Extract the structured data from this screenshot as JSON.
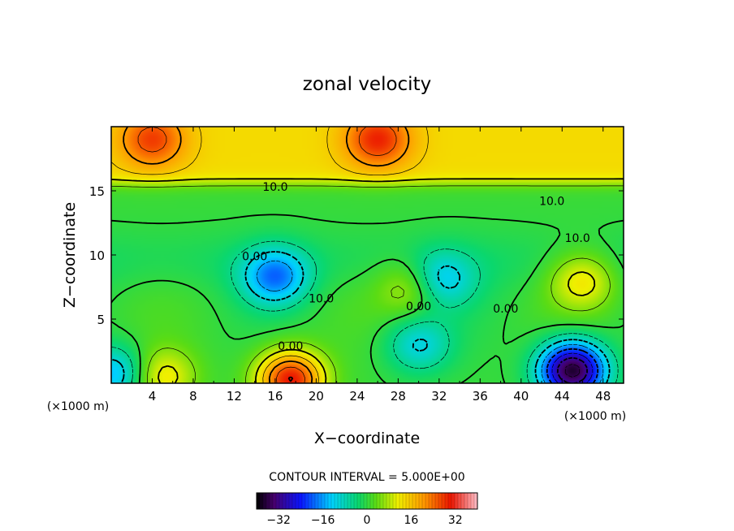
{
  "chart_data": {
    "type": "heatmap",
    "title": "zonal velocity",
    "xlabel": "X−coordinate",
    "ylabel": "Z−coordinate",
    "xunit": "(×1000 m)",
    "yunit": "(×1000 m)",
    "xlim": [
      0,
      50
    ],
    "ylim": [
      0,
      20
    ],
    "x_ticks": [
      4,
      8,
      12,
      16,
      20,
      24,
      28,
      32,
      36,
      40,
      44,
      48
    ],
    "y_ticks": [
      5,
      10,
      15
    ],
    "contour_labels": [
      {
        "text": "10.0",
        "x": 16,
        "y": 15.0
      },
      {
        "text": "10.0",
        "x": 43,
        "y": 13.9
      },
      {
        "text": "10.0",
        "x": 45.5,
        "y": 11.0
      },
      {
        "text": "0.00",
        "x": 14,
        "y": 9.6
      },
      {
        "text": "10.0",
        "x": 20.5,
        "y": 6.3
      },
      {
        "text": "0.00",
        "x": 30,
        "y": 5.7
      },
      {
        "text": "0.00",
        "x": 38.5,
        "y": 5.5
      },
      {
        "text": "0.00",
        "x": 17.5,
        "y": 2.6
      }
    ],
    "contour_interval_label": "CONTOUR INTERVAL = 5.000E+00",
    "colorbar": {
      "range": [
        -40,
        40
      ],
      "ticks": [
        -32,
        -16,
        0,
        16,
        32
      ],
      "tick_labels": [
        "−32",
        "−16",
        "0",
        "16",
        "32"
      ]
    },
    "features": [
      {
        "type": "max",
        "x": 26,
        "y": 19,
        "value": 20
      },
      {
        "type": "max",
        "x": 4,
        "y": 19,
        "value": 18
      },
      {
        "type": "max",
        "x": 17.5,
        "y": 0.3,
        "value": 34
      },
      {
        "type": "max",
        "x": 5,
        "y": 0.5,
        "value": 16
      },
      {
        "type": "max",
        "x": 46,
        "y": 8,
        "value": 16
      },
      {
        "type": "max",
        "x": 29.5,
        "y": 7.5,
        "value": 14
      },
      {
        "type": "min",
        "x": 45,
        "y": 1,
        "value": -34
      },
      {
        "type": "min",
        "x": 16,
        "y": 8.3,
        "value": -13
      },
      {
        "type": "min",
        "x": 32,
        "y": 8,
        "value": -9
      },
      {
        "type": "min",
        "x": 30,
        "y": 3,
        "value": -7
      },
      {
        "type": "min",
        "x": 0.3,
        "y": 0.7,
        "value": -11
      }
    ]
  }
}
